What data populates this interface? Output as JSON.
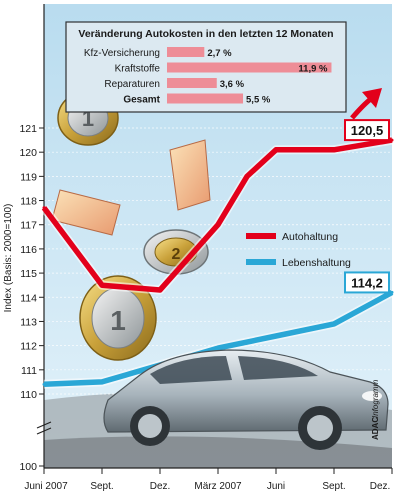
{
  "inset": {
    "title": "Veränderung Autokosten in den letzten 12 Monaten",
    "items": [
      {
        "label": "Kfz-Versicherung",
        "value": 2.7,
        "text": "2,7 %",
        "bold": false
      },
      {
        "label": "Kraftstoffe",
        "value": 11.9,
        "text": "11,9 %",
        "bold": false
      },
      {
        "label": "Reparaturen",
        "value": 3.6,
        "text": "3,6 %",
        "bold": false
      },
      {
        "label": "Gesamt",
        "value": 5.5,
        "text": "5,5 %",
        "bold": true
      }
    ]
  },
  "credit": {
    "brand": "ADAC",
    "suffix": "Infogramm"
  },
  "colors": {
    "auto": "#e3001b",
    "leben": "#2aa7d6",
    "plot_bg_top": "#b9dcef",
    "plot_bg_bottom": "#e3f2fa",
    "inset_bar": "#ee8d97",
    "inset_bg": "#dce9f1"
  },
  "chart_data": {
    "type": "line",
    "ylabel": "Index (Basis: 2000=100)",
    "ylim": [
      100,
      121
    ],
    "y_ticks": [
      100,
      110,
      111,
      112,
      113,
      114,
      115,
      116,
      117,
      118,
      119,
      120,
      121
    ],
    "x_tick_labels": [
      "Juni 2007",
      "Sept.",
      "Dez.",
      "März 2007",
      "Juni",
      "Sept.",
      "Dez."
    ],
    "series": [
      {
        "name": "Autohaltung",
        "color": "#e3001b",
        "x": [
          0,
          1,
          2,
          3,
          3.5,
          4,
          5,
          6
        ],
        "values": [
          117.7,
          114.5,
          114.3,
          117.0,
          119.0,
          120.1,
          120.1,
          120.5
        ],
        "end_label": "120,5"
      },
      {
        "name": "Lebenshaltung",
        "color": "#2aa7d6",
        "x": [
          0,
          1,
          2,
          3,
          4,
          5,
          6
        ],
        "values": [
          110.4,
          110.5,
          111.2,
          111.9,
          112.4,
          112.9,
          114.2
        ],
        "end_label": "114,2"
      }
    ]
  }
}
